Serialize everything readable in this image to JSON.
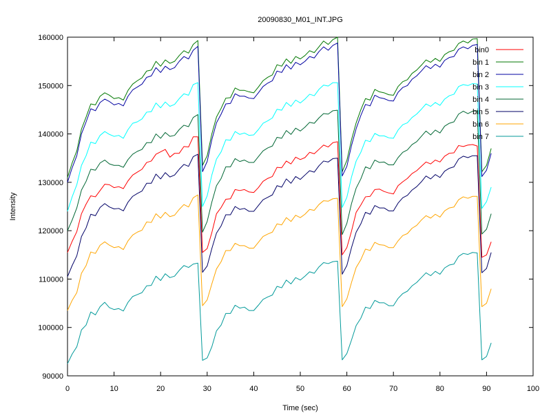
{
  "chart_data": {
    "type": "line",
    "title": "20090830_M01_INT.JPG",
    "xlabel": "Time (sec)",
    "ylabel": "Intensity",
    "xlim": [
      0,
      100
    ],
    "ylim": [
      90000,
      160000
    ],
    "xticks": [
      0,
      10,
      20,
      30,
      40,
      50,
      60,
      70,
      80,
      90,
      100
    ],
    "yticks": [
      90000,
      100000,
      110000,
      120000,
      130000,
      140000,
      150000,
      160000
    ],
    "grid": false,
    "legend": "top-right",
    "x": [
      0,
      1,
      2,
      3,
      4,
      5,
      6,
      7,
      8,
      9,
      10,
      11,
      12,
      13,
      14,
      15,
      16,
      17,
      18,
      19,
      20,
      21,
      22,
      23,
      24,
      25,
      26,
      27,
      28,
      29,
      30,
      31,
      32,
      33,
      34,
      35,
      36,
      37,
      38,
      39,
      40,
      41,
      42,
      43,
      44,
      45,
      46,
      47,
      48,
      49,
      50,
      51,
      52,
      53,
      54,
      55,
      56,
      57,
      58,
      59,
      60,
      61,
      62,
      63,
      64,
      65,
      66,
      67,
      68,
      69,
      70,
      71,
      72,
      73,
      74,
      75,
      76,
      77,
      78,
      79,
      80,
      81,
      82,
      83,
      84,
      85,
      86,
      87,
      88,
      89,
      90,
      91,
      92
    ],
    "series": [
      {
        "name": "bin0",
        "color": "#ff0000",
        "values": [
          115500,
          117800,
          119800,
          123500,
          125500,
          127200,
          127000,
          128300,
          129600,
          129500,
          128900,
          129100,
          128700,
          130300,
          131500,
          132100,
          132700,
          134100,
          134400,
          135800,
          136300,
          136800,
          135200,
          136000,
          136000,
          137400,
          137300,
          139400,
          139400,
          115500,
          116300,
          119600,
          123500,
          124800,
          126500,
          126600,
          128500,
          128300,
          128500,
          128000,
          127900,
          128900,
          130200,
          130800,
          131200,
          133100,
          133000,
          134400,
          133800,
          135200,
          134700,
          135100,
          136200,
          135900,
          136800,
          137700,
          137300,
          138200,
          138400,
          115000,
          116500,
          119900,
          123800,
          125300,
          127000,
          127100,
          128500,
          128600,
          128100,
          127800,
          127600,
          129300,
          130100,
          130800,
          131800,
          132400,
          133300,
          134200,
          133800,
          134600,
          134200,
          135400,
          136000,
          136100,
          137600,
          137400,
          137700,
          137800,
          137500,
          114500,
          115000,
          117700,
          null
        ]
      },
      {
        "name": "bin 1",
        "color": "#007700",
        "values": [
          131000,
          134000,
          136500,
          141000,
          143500,
          146200,
          146000,
          147800,
          148500,
          148000,
          147300,
          147500,
          147000,
          149000,
          150300,
          151000,
          151600,
          153000,
          153200,
          155000,
          154000,
          155300,
          154600,
          155000,
          156200,
          157200,
          156700,
          158500,
          159300,
          133500,
          135500,
          140000,
          143500,
          145300,
          147400,
          147500,
          149500,
          149000,
          149000,
          148700,
          148500,
          149700,
          151000,
          151700,
          152200,
          154300,
          154000,
          155500,
          154600,
          156000,
          155500,
          156200,
          157200,
          156800,
          158000,
          159200,
          158500,
          159500,
          160000,
          132200,
          134500,
          138800,
          142300,
          145000,
          147300,
          147000,
          149200,
          148700,
          148500,
          148100,
          148000,
          149800,
          150800,
          151200,
          152500,
          153200,
          154200,
          155300,
          154800,
          155600,
          155000,
          156400,
          157000,
          157300,
          158700,
          159200,
          158800,
          159600,
          159700,
          132200,
          133500,
          137000,
          null
        ]
      },
      {
        "name": "bin 2",
        "color": "#0000a0",
        "values": [
          130000,
          133000,
          135500,
          140000,
          142500,
          145200,
          144800,
          146500,
          147200,
          146700,
          146000,
          146300,
          145800,
          147800,
          149100,
          149700,
          150300,
          151700,
          152000,
          153700,
          152700,
          154000,
          153300,
          153700,
          155000,
          156000,
          155500,
          157300,
          158100,
          132200,
          134300,
          138800,
          142300,
          144100,
          146200,
          146300,
          148300,
          147800,
          147800,
          147400,
          147300,
          148500,
          149800,
          150500,
          151000,
          153000,
          152700,
          154300,
          153400,
          154800,
          154300,
          155000,
          156000,
          155700,
          157000,
          158000,
          157300,
          158300,
          158800,
          131300,
          133300,
          137600,
          141100,
          143800,
          146100,
          145800,
          148000,
          147500,
          147300,
          146900,
          146800,
          148600,
          149600,
          150000,
          151300,
          152000,
          153000,
          154100,
          153500,
          154400,
          153800,
          155200,
          155800,
          156000,
          157500,
          158000,
          157600,
          158300,
          158500,
          131200,
          132500,
          136000,
          null
        ]
      },
      {
        "name": "bin 3",
        "color": "#00ffff",
        "values": [
          124000,
          127000,
          129500,
          133500,
          135500,
          138300,
          138000,
          139700,
          140500,
          139900,
          139500,
          139700,
          139100,
          140900,
          142200,
          142500,
          143100,
          144500,
          144600,
          146400,
          145400,
          146600,
          145700,
          146100,
          147300,
          148300,
          148000,
          150200,
          150600,
          125000,
          127200,
          131500,
          134800,
          136300,
          138800,
          138700,
          140500,
          139900,
          140200,
          139700,
          139800,
          140900,
          142200,
          142700,
          143300,
          145100,
          144900,
          146500,
          145700,
          147000,
          146400,
          147200,
          148200,
          147900,
          149200,
          150100,
          149900,
          150600,
          150600,
          124800,
          126900,
          131100,
          134400,
          136200,
          138700,
          138400,
          140100,
          139600,
          139600,
          139200,
          139100,
          140800,
          141900,
          142300,
          143400,
          144100,
          145100,
          146200,
          145700,
          146500,
          145900,
          147200,
          147900,
          148200,
          149800,
          150200,
          150000,
          150400,
          150300,
          124600,
          126000,
          129000,
          null
        ]
      },
      {
        "name": "bin 4",
        "color": "#006633",
        "values": [
          120000,
          122200,
          124700,
          128400,
          130200,
          132700,
          132500,
          134000,
          134600,
          133800,
          133500,
          133500,
          133100,
          134700,
          135800,
          136400,
          136800,
          138200,
          138200,
          140000,
          139100,
          140300,
          139500,
          139700,
          140900,
          141800,
          141500,
          143400,
          144000,
          119700,
          121900,
          125900,
          129300,
          130800,
          133200,
          133200,
          134900,
          134300,
          134600,
          134100,
          134100,
          135300,
          136500,
          137100,
          137500,
          139300,
          139100,
          140700,
          139900,
          141200,
          140600,
          141400,
          142400,
          142200,
          143300,
          144200,
          144100,
          144800,
          144900,
          119200,
          121500,
          125600,
          128800,
          130700,
          133200,
          132800,
          134600,
          134100,
          134200,
          133600,
          133600,
          135100,
          136200,
          136700,
          137800,
          138400,
          139500,
          140600,
          139800,
          140800,
          140200,
          141600,
          142200,
          142500,
          144100,
          144700,
          144200,
          144700,
          144800,
          119300,
          120300,
          123500,
          null
        ]
      },
      {
        "name": "bin 5",
        "color": "#000066",
        "values": [
          110500,
          112800,
          114800,
          118800,
          120600,
          123400,
          123100,
          124800,
          125600,
          124900,
          124500,
          124600,
          124100,
          125900,
          127100,
          127700,
          128200,
          129800,
          129800,
          131700,
          130700,
          132000,
          131100,
          131500,
          132700,
          133700,
          133300,
          135300,
          135800,
          111400,
          112700,
          116300,
          119500,
          121000,
          123300,
          123300,
          125000,
          124400,
          124600,
          124000,
          124000,
          125200,
          126400,
          126900,
          127400,
          129300,
          129000,
          130700,
          129800,
          131200,
          130600,
          131500,
          132400,
          132100,
          133400,
          134400,
          134200,
          134900,
          135000,
          111000,
          112800,
          116500,
          119700,
          121400,
          123800,
          123400,
          125200,
          124700,
          124700,
          124100,
          124100,
          125700,
          126800,
          127300,
          128400,
          129100,
          130100,
          131300,
          130700,
          131600,
          131000,
          132300,
          132900,
          133200,
          134800,
          135400,
          135100,
          135500,
          135500,
          111300,
          112200,
          115500,
          null
        ]
      },
      {
        "name": "bin 6",
        "color": "#ffa500",
        "values": [
          103500,
          105600,
          107200,
          111200,
          112800,
          115600,
          115300,
          117000,
          117700,
          117000,
          116500,
          116700,
          116100,
          117900,
          119100,
          119700,
          120100,
          121800,
          121700,
          123500,
          122600,
          123800,
          122900,
          123200,
          124400,
          125400,
          124900,
          126800,
          127400,
          104500,
          105700,
          109000,
          112100,
          113600,
          115900,
          115900,
          117400,
          116900,
          116900,
          116400,
          116400,
          117600,
          118800,
          119300,
          119700,
          121400,
          121200,
          122700,
          121900,
          123200,
          122700,
          123400,
          124400,
          124200,
          125400,
          126200,
          126100,
          126600,
          126700,
          104300,
          105900,
          109300,
          112400,
          114000,
          116200,
          115900,
          117600,
          117100,
          117000,
          116500,
          116500,
          117900,
          119000,
          119400,
          120500,
          121100,
          122200,
          123100,
          122600,
          123400,
          122800,
          124100,
          124700,
          124900,
          126400,
          127000,
          126700,
          127100,
          127100,
          104300,
          105000,
          108000,
          null
        ]
      },
      {
        "name": "bin 7",
        "color": "#009999",
        "values": [
          92500,
          94500,
          96000,
          99500,
          100500,
          103200,
          102600,
          104300,
          105200,
          104100,
          103700,
          103900,
          103400,
          105200,
          106400,
          106800,
          107200,
          108600,
          108700,
          110600,
          109700,
          111100,
          110300,
          110600,
          111800,
          112800,
          112400,
          113100,
          113300,
          93200,
          93700,
          96000,
          99300,
          100500,
          102900,
          102900,
          104600,
          104000,
          104200,
          103500,
          103500,
          104600,
          105800,
          106300,
          106700,
          108500,
          108200,
          109800,
          109000,
          110300,
          109800,
          110600,
          111500,
          111200,
          112500,
          113400,
          113200,
          113600,
          113700,
          93300,
          94600,
          97400,
          100400,
          101900,
          104200,
          103900,
          105600,
          105100,
          105100,
          104500,
          104500,
          106000,
          107000,
          107500,
          108600,
          109300,
          110300,
          111300,
          110700,
          111600,
          111000,
          112300,
          112900,
          113100,
          114700,
          115300,
          115100,
          115500,
          115400,
          93300,
          94000,
          96800,
          null
        ]
      }
    ]
  }
}
